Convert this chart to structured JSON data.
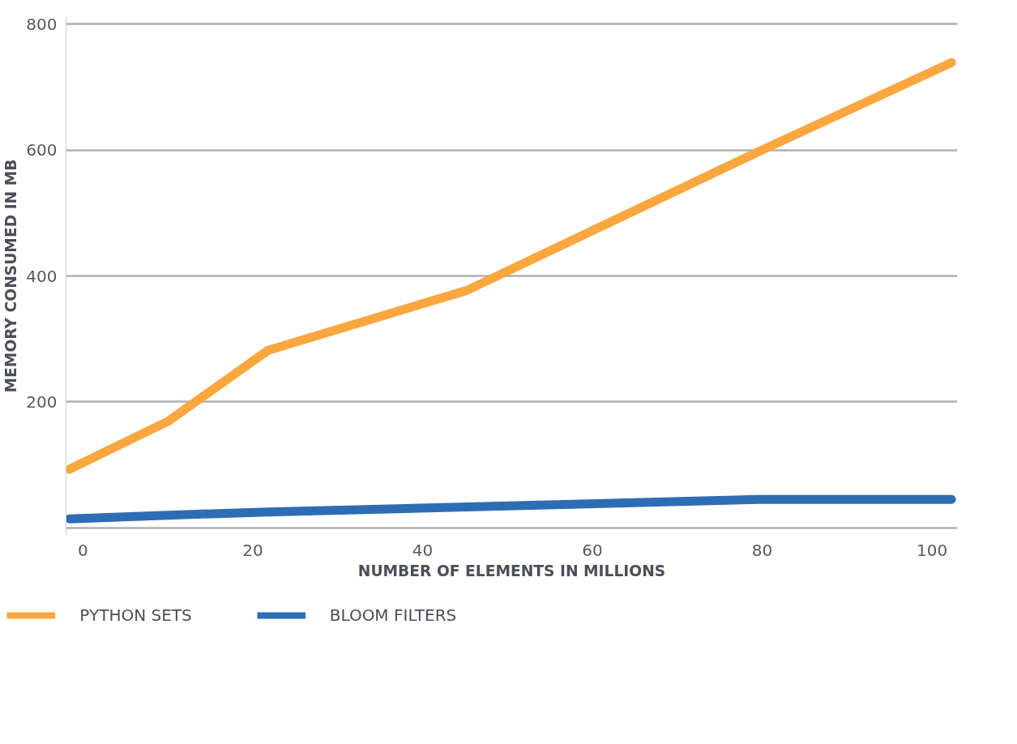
{
  "chart_data": {
    "type": "line",
    "xlabel": "NUMBER OF ELEMENTS IN MILLIONS",
    "ylabel": "MEMORY CONSUMED IN MB",
    "x": [
      -1.6,
      10,
      21.8,
      45.2,
      79.5,
      102.3
    ],
    "series": [
      {
        "name": "PYTHON SETS",
        "color": "#f9a73e",
        "values": [
          93,
          169,
          282,
          377,
          597,
          739
        ]
      },
      {
        "name": "BLOOM FILTERS",
        "color": "#2e6db4",
        "values": [
          14,
          20,
          25,
          33,
          45,
          45
        ]
      }
    ],
    "xlim": [
      -2,
      103
    ],
    "ylim": [
      -12,
      812
    ],
    "xticks": [
      0,
      20,
      40,
      60,
      80,
      100
    ],
    "yticks": [
      {
        "value": 0,
        "label": null
      },
      200,
      400,
      600,
      800
    ],
    "grid": "y",
    "legend": "bottom",
    "marker": "none",
    "line_style": "solid"
  }
}
